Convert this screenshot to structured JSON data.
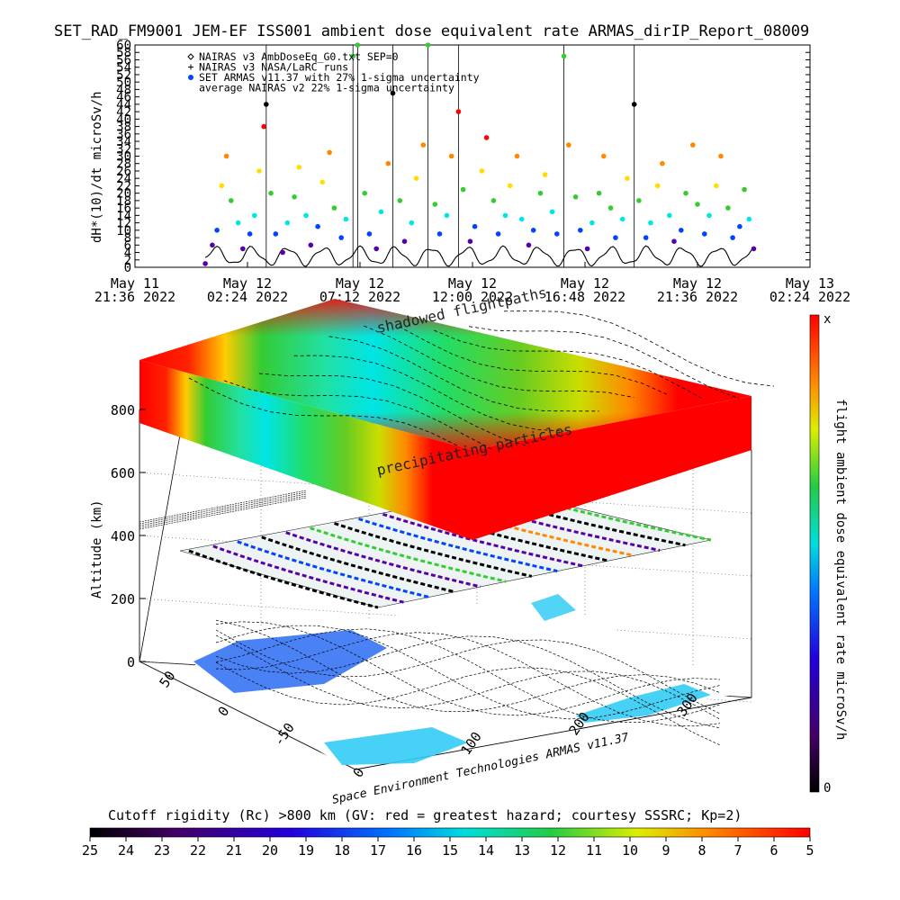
{
  "title": "SET_RAD_FM9001  JEM-EF ISS001 ambient dose equivalent rate ARMAS_dirIP_Report_08009",
  "colors": {
    "red": "#ff0000",
    "orange": "#ff8800",
    "yellow": "#ffdd00",
    "green": "#33cc33",
    "cyan": "#00e5e5",
    "blue": "#0044ff",
    "purple": "#5500aa",
    "black": "#000000"
  },
  "chart_data": [
    {
      "type": "scatter",
      "title": "SET_RAD_FM9001  JEM-EF ISS001 ambient dose equivalent rate ARMAS_dirIP_Report_08009",
      "ylabel": "dH*(10)/dt microSv/h",
      "ylim": [
        0,
        60
      ],
      "yticks": [
        0,
        2,
        4,
        6,
        8,
        10,
        12,
        14,
        16,
        18,
        20,
        22,
        24,
        26,
        28,
        30,
        32,
        34,
        36,
        38,
        40,
        42,
        44,
        46,
        48,
        50,
        52,
        54,
        56,
        58,
        60
      ],
      "xticks": [
        {
          "line1": "May 11",
          "line2": "21:36 2022",
          "hours": 0
        },
        {
          "line1": "May 12",
          "line2": "02:24 2022",
          "hours": 4.8
        },
        {
          "line1": "May 12",
          "line2": "07:12 2022",
          "hours": 9.6
        },
        {
          "line1": "May 12",
          "line2": "12:00 2022",
          "hours": 14.4
        },
        {
          "line1": "May 12",
          "line2": "16:48 2022",
          "hours": 19.2
        },
        {
          "line1": "May 12",
          "line2": "21:36 2022",
          "hours": 24.0
        },
        {
          "line1": "May 13",
          "line2": "02:24 2022",
          "hours": 28.8
        }
      ],
      "legend": [
        {
          "marker": "diamond",
          "label": "NAIRAS v3 AmbDoseEq_G0.txt SEP=0"
        },
        {
          "marker": "plus",
          "label": "NAIRAS v3 NASA/LaRC runs"
        },
        {
          "marker": "dot",
          "label": "SET ARMAS v11.37 with 27% 1-sigma uncertainty"
        },
        {
          "marker": "none",
          "label": "average NAIRAS v2 22% 1-sigma uncertainty"
        }
      ],
      "series": [
        {
          "name": "SET ARMAS v11.37 with 27% 1-sigma uncertainty",
          "points": [
            [
              3.0,
              1
            ],
            [
              3.3,
              6
            ],
            [
              3.5,
              10
            ],
            [
              3.7,
              22
            ],
            [
              3.9,
              30
            ],
            [
              4.1,
              18
            ],
            [
              4.4,
              12
            ],
            [
              4.6,
              5
            ],
            [
              4.9,
              9
            ],
            [
              5.1,
              14
            ],
            [
              5.3,
              26
            ],
            [
              5.5,
              38
            ],
            [
              5.6,
              44
            ],
            [
              5.8,
              20
            ],
            [
              6.0,
              9
            ],
            [
              6.3,
              4
            ],
            [
              6.5,
              12
            ],
            [
              6.8,
              19
            ],
            [
              7.0,
              27
            ],
            [
              7.3,
              14
            ],
            [
              7.5,
              6
            ],
            [
              7.8,
              11
            ],
            [
              8.0,
              23
            ],
            [
              8.3,
              31
            ],
            [
              8.5,
              16
            ],
            [
              8.8,
              8
            ],
            [
              9.0,
              13
            ],
            [
              9.3,
              57
            ],
            [
              9.5,
              60
            ],
            [
              9.8,
              20
            ],
            [
              10.0,
              9
            ],
            [
              10.3,
              5
            ],
            [
              10.5,
              15
            ],
            [
              10.8,
              28
            ],
            [
              11.0,
              47
            ],
            [
              11.3,
              18
            ],
            [
              11.5,
              7
            ],
            [
              11.8,
              12
            ],
            [
              12.0,
              24
            ],
            [
              12.3,
              33
            ],
            [
              12.5,
              60
            ],
            [
              12.8,
              17
            ],
            [
              13.0,
              9
            ],
            [
              13.3,
              14
            ],
            [
              13.5,
              30
            ],
            [
              13.8,
              42
            ],
            [
              14.0,
              21
            ],
            [
              14.3,
              7
            ],
            [
              14.5,
              11
            ],
            [
              14.8,
              26
            ],
            [
              15.0,
              35
            ],
            [
              15.3,
              18
            ],
            [
              15.5,
              9
            ],
            [
              15.8,
              14
            ],
            [
              16.0,
              22
            ],
            [
              16.3,
              30
            ],
            [
              16.5,
              13
            ],
            [
              16.8,
              6
            ],
            [
              17.0,
              10
            ],
            [
              17.3,
              20
            ],
            [
              17.5,
              25
            ],
            [
              17.8,
              15
            ],
            [
              18.0,
              9
            ],
            [
              18.3,
              57
            ],
            [
              18.5,
              33
            ],
            [
              18.8,
              19
            ],
            [
              19.0,
              10
            ],
            [
              19.3,
              5
            ],
            [
              19.5,
              12
            ],
            [
              19.8,
              20
            ],
            [
              20.0,
              30
            ],
            [
              20.3,
              16
            ],
            [
              20.5,
              8
            ],
            [
              20.8,
              13
            ],
            [
              21.0,
              24
            ],
            [
              21.3,
              44
            ],
            [
              21.5,
              18
            ],
            [
              21.8,
              8
            ],
            [
              22.0,
              12
            ],
            [
              22.3,
              22
            ],
            [
              22.5,
              28
            ],
            [
              22.8,
              14
            ],
            [
              23.0,
              7
            ],
            [
              23.3,
              10
            ],
            [
              23.5,
              20
            ],
            [
              23.8,
              33
            ],
            [
              24.0,
              17
            ],
            [
              24.3,
              9
            ],
            [
              24.5,
              14
            ],
            [
              24.8,
              22
            ],
            [
              25.0,
              30
            ],
            [
              25.3,
              16
            ],
            [
              25.5,
              8
            ],
            [
              25.8,
              11
            ],
            [
              26.0,
              21
            ],
            [
              26.2,
              13
            ],
            [
              26.4,
              5
            ]
          ]
        }
      ]
    },
    {
      "type": "heatmap",
      "title": "Cutoff rigidity (Rc) >800 km (GV: red = greatest hazard; courtesy SSSRC; Kp=2)",
      "zlabel": "Altitude (km)",
      "zticks": [
        0,
        200,
        400,
        600,
        800
      ],
      "lat_ticks": [
        50,
        0,
        -50
      ],
      "lon_ticks": [
        0,
        100,
        200,
        300
      ],
      "annotations": [
        "shadowed flightpaths",
        "precipitating particles"
      ],
      "credit": "Space Environment Technologies ARMAS v11.37",
      "colorbar_vertical": {
        "label": "flight ambient dose equivalent rate microSv/h",
        "top": "x",
        "bottom": "0"
      },
      "colorbar_horizontal": {
        "ticks": [
          25,
          24,
          23,
          22,
          21,
          20,
          19,
          18,
          17,
          16,
          15,
          14,
          13,
          12,
          11,
          10,
          9,
          8,
          7,
          6,
          5
        ]
      }
    }
  ]
}
